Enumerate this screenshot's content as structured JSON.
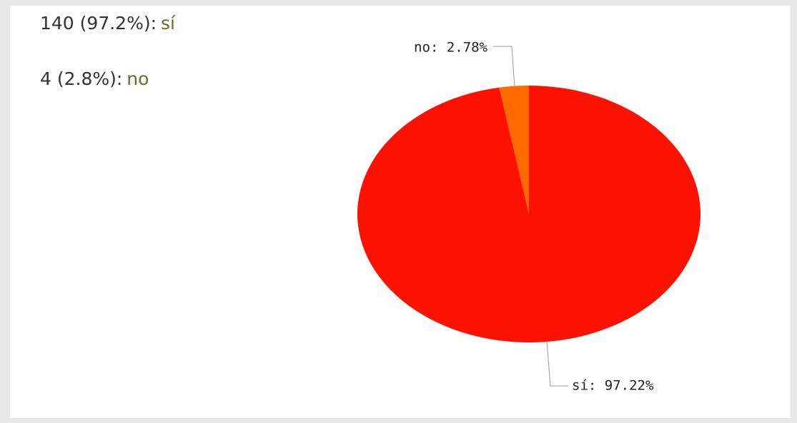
{
  "summary": [
    {
      "text": "140 (97.2%):",
      "answer": "sí"
    },
    {
      "text": "4 (2.8%):",
      "answer": "no"
    }
  ],
  "chart_data": {
    "type": "pie",
    "categories": [
      "sí",
      "no"
    ],
    "values": [
      97.22,
      2.78
    ],
    "value_labels": [
      "sí: 97.22%",
      "no: 2.78%"
    ],
    "colors": [
      "#ff1100",
      "#ff6a00"
    ]
  }
}
